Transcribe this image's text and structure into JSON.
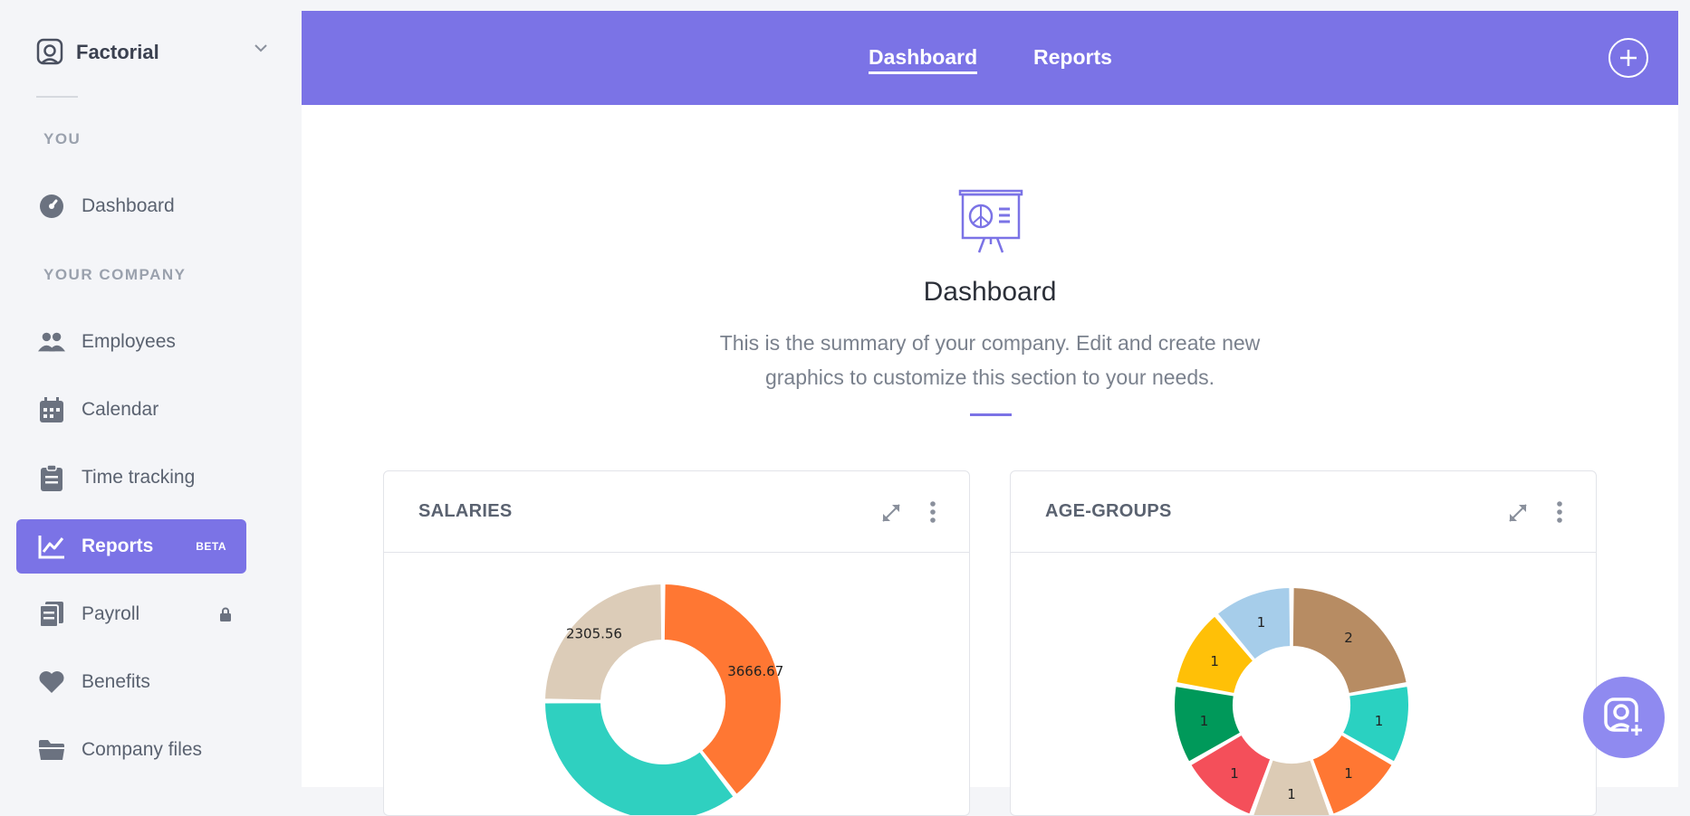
{
  "sidebar": {
    "brand": "Factorial",
    "section_you": "YOU",
    "section_company": "YOUR COMPANY",
    "items": [
      {
        "label": "Dashboard"
      },
      {
        "label": "Employees"
      },
      {
        "label": "Calendar"
      },
      {
        "label": "Time tracking"
      },
      {
        "label": "Reports",
        "badge": "BETA",
        "active": true
      },
      {
        "label": "Payroll",
        "locked": true
      },
      {
        "label": "Benefits"
      },
      {
        "label": "Company files"
      }
    ]
  },
  "topbar": {
    "tabs": [
      {
        "label": "Dashboard",
        "active": true
      },
      {
        "label": "Reports",
        "active": false
      }
    ]
  },
  "hero": {
    "title": "Dashboard",
    "description": "This is the summary of your company. Edit and create new graphics to customize this section to your needs."
  },
  "cards": [
    {
      "title": "SALARIES"
    },
    {
      "title": "AGE-GROUPS"
    }
  ],
  "colors": {
    "accent": "#7b73e6",
    "support": "#8f8af0"
  },
  "chart_data": [
    {
      "type": "pie",
      "title": "SALARIES",
      "donut": true,
      "slices": [
        {
          "value": 3666.67,
          "color": "#ff7733"
        },
        {
          "value": 3300,
          "color": "#2fd0c0"
        },
        {
          "value": 2305.56,
          "color": "#dcccb8"
        }
      ]
    },
    {
      "type": "pie",
      "title": "AGE-GROUPS",
      "donut": true,
      "slices": [
        {
          "value": 2,
          "color": "#b78c63"
        },
        {
          "value": 1,
          "color": "#2ad1c1"
        },
        {
          "value": 1,
          "color": "#ff7733"
        },
        {
          "value": 1,
          "color": "#dccbb5"
        },
        {
          "value": 1,
          "color": "#f44f5a"
        },
        {
          "value": 1,
          "color": "#00995a"
        },
        {
          "value": 1,
          "color": "#ffc007"
        },
        {
          "value": 1,
          "color": "#a6cdea"
        }
      ]
    }
  ]
}
